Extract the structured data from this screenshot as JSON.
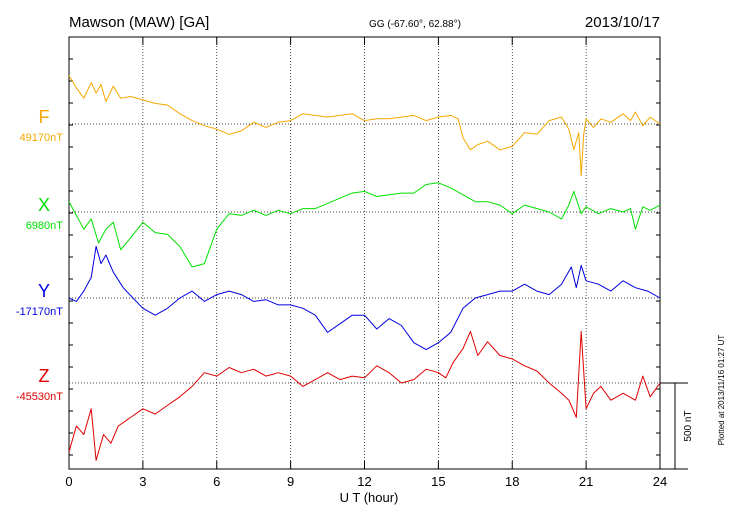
{
  "header": {
    "title": "Mawson (MAW)  [GA]",
    "coords": "GG (-67.60°,  62.88°)",
    "date": "2013/10/17"
  },
  "side_note": "Plotted at 2013/11/16 01:27 UT",
  "scale_bar_label": "500 nT",
  "chart_data": {
    "type": "line",
    "xlabel": "U T (hour)",
    "xlim": [
      0,
      24
    ],
    "xticks": [
      0,
      3,
      6,
      9,
      12,
      15,
      18,
      21,
      24
    ],
    "grid": true,
    "scale_bar_nT": 500,
    "series": [
      {
        "name": "F",
        "baseline_label": "49170nT",
        "color": "#f5a800",
        "x": [
          0,
          0.3,
          0.6,
          0.9,
          1.1,
          1.3,
          1.5,
          1.8,
          2.1,
          2.5,
          3,
          3.5,
          4,
          4.5,
          5,
          5.5,
          6,
          6.5,
          7,
          7.5,
          8,
          8.5,
          9,
          9.5,
          10,
          10.5,
          11,
          11.5,
          12,
          12.5,
          13,
          13.5,
          14,
          14.5,
          15,
          15.5,
          15.8,
          16,
          16.3,
          16.6,
          17,
          17.5,
          18,
          18.5,
          19,
          19.5,
          20,
          20.3,
          20.5,
          20.7,
          20.8,
          20.9,
          21,
          21.3,
          21.6,
          22,
          22.5,
          22.8,
          23,
          23.3,
          23.6,
          24
        ],
        "y": [
          280,
          210,
          150,
          240,
          180,
          230,
          130,
          220,
          150,
          160,
          140,
          120,
          110,
          60,
          20,
          -10,
          -30,
          -60,
          -40,
          10,
          -20,
          10,
          20,
          60,
          50,
          40,
          50,
          60,
          20,
          30,
          30,
          40,
          50,
          20,
          40,
          50,
          30,
          -80,
          -150,
          -120,
          -100,
          -150,
          -130,
          -50,
          -60,
          20,
          40,
          -30,
          -150,
          -50,
          -300,
          -60,
          30,
          -20,
          30,
          10,
          60,
          20,
          70,
          -10,
          40,
          0
        ]
      },
      {
        "name": "X",
        "baseline_label": "6980nT",
        "color": "#00e000",
        "x": [
          0,
          0.3,
          0.6,
          0.9,
          1.2,
          1.5,
          1.8,
          2.1,
          2.5,
          3,
          3.5,
          4,
          4.5,
          5,
          5.5,
          6,
          6.5,
          7,
          7.5,
          8,
          8.5,
          9,
          9.5,
          10,
          10.5,
          11,
          11.5,
          12,
          12.5,
          13,
          13.5,
          14,
          14.5,
          15,
          15.5,
          16,
          16.5,
          17,
          17.5,
          18,
          18.5,
          19,
          19.5,
          20,
          20.3,
          20.5,
          20.8,
          21,
          21.5,
          22,
          22.5,
          22.8,
          23,
          23.3,
          23.6,
          24
        ],
        "y": [
          60,
          -20,
          -100,
          -40,
          -180,
          -100,
          -60,
          -220,
          -150,
          -60,
          -120,
          -130,
          -200,
          -320,
          -300,
          -100,
          -10,
          -20,
          10,
          -20,
          10,
          -10,
          20,
          20,
          50,
          80,
          110,
          120,
          90,
          100,
          110,
          110,
          160,
          170,
          140,
          100,
          60,
          60,
          40,
          -10,
          40,
          20,
          0,
          -40,
          40,
          120,
          -10,
          30,
          -10,
          20,
          0,
          20,
          -100,
          30,
          10,
          40
        ]
      },
      {
        "name": "Y",
        "baseline_label": "-17170nT",
        "color": "#0000e0",
        "x": [
          0,
          0.3,
          0.6,
          0.9,
          1.1,
          1.3,
          1.5,
          1.8,
          2.2,
          2.6,
          3,
          3.5,
          4,
          4.5,
          5,
          5.5,
          6,
          6.5,
          7,
          7.5,
          8,
          8.5,
          9,
          9.5,
          10,
          10.5,
          11,
          11.5,
          12,
          12.5,
          13,
          13.5,
          14,
          14.5,
          15,
          15.5,
          16,
          16.5,
          17,
          17.5,
          18,
          18.5,
          19,
          19.5,
          20,
          20.4,
          20.6,
          20.8,
          21,
          21.5,
          22,
          22.5,
          23,
          23.5,
          24
        ],
        "y": [
          0,
          -20,
          40,
          120,
          300,
          200,
          250,
          150,
          60,
          0,
          -60,
          -100,
          -60,
          0,
          40,
          -20,
          20,
          40,
          20,
          -20,
          -10,
          -40,
          -40,
          -60,
          -100,
          -200,
          -150,
          -100,
          -100,
          -180,
          -120,
          -160,
          -260,
          -300,
          -260,
          -200,
          -60,
          0,
          20,
          40,
          40,
          80,
          40,
          20,
          80,
          180,
          60,
          190,
          100,
          80,
          40,
          100,
          60,
          40,
          0
        ]
      },
      {
        "name": "Z",
        "baseline_label": "-45530nT",
        "color": "#e00000",
        "x": [
          0,
          0.3,
          0.6,
          0.9,
          1.1,
          1.4,
          1.7,
          2,
          2.5,
          3,
          3.5,
          4,
          4.5,
          5,
          5.5,
          6,
          6.5,
          7,
          7.5,
          8,
          8.5,
          9,
          9.5,
          10,
          10.5,
          11,
          11.5,
          12,
          12.5,
          13,
          13.5,
          14,
          14.5,
          15,
          15.3,
          15.6,
          16,
          16.3,
          16.6,
          17,
          17.5,
          18,
          18.5,
          19,
          19.5,
          20,
          20.3,
          20.6,
          20.8,
          21,
          21.3,
          21.6,
          22,
          22.5,
          23,
          23.3,
          23.6,
          24
        ],
        "y": [
          -400,
          -250,
          -300,
          -150,
          -450,
          -300,
          -350,
          -250,
          -200,
          -150,
          -180,
          -130,
          -80,
          -20,
          60,
          40,
          90,
          60,
          80,
          40,
          60,
          40,
          -20,
          20,
          60,
          20,
          40,
          30,
          100,
          60,
          0,
          20,
          80,
          60,
          30,
          120,
          200,
          300,
          160,
          240,
          160,
          140,
          100,
          70,
          0,
          -60,
          -100,
          -200,
          300,
          -150,
          -60,
          -20,
          -100,
          -60,
          -100,
          40,
          -80,
          0
        ]
      }
    ]
  }
}
